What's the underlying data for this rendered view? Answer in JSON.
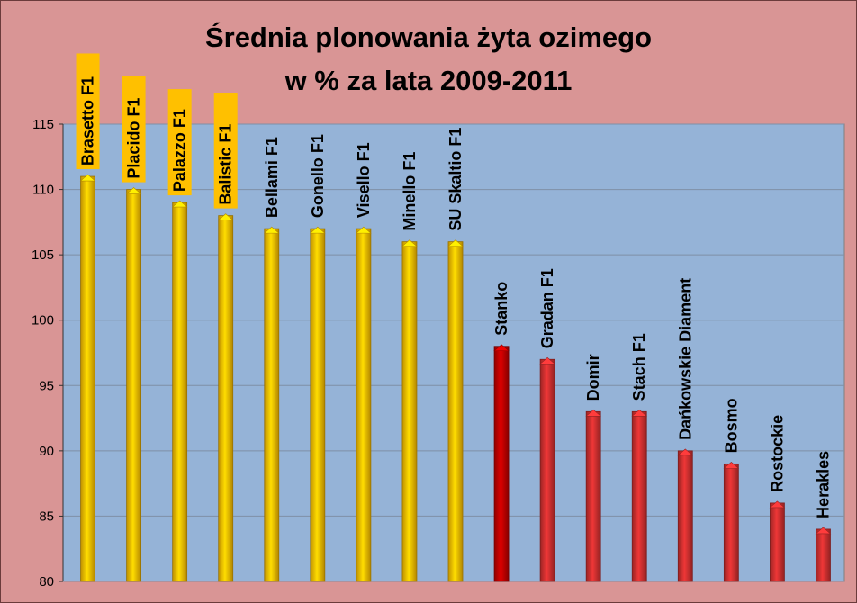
{
  "chart_data": {
    "type": "bar",
    "title": "Średnia plonowania żyta ozimego",
    "subtitle": "w % za lata 2009-2011",
    "xlabel": "",
    "ylabel": "",
    "ylim": [
      80,
      115
    ],
    "yticks": [
      "80",
      "85",
      "90",
      "95",
      "100",
      "105",
      "110",
      "115"
    ],
    "grid": true,
    "categories": [
      "Brasetto F1",
      "Placido F1",
      "Palazzo F1",
      "Balistic F1",
      "Bellami F1",
      "Gonello F1",
      "Visello F1",
      "Minello F1",
      "SU Skaltio F1",
      "Stanko",
      "Gradan F1",
      "Domir",
      "Stach F1",
      "Dańkowskie Diament",
      "Bosmo",
      "Rostockie",
      "Herakles"
    ],
    "values": [
      111,
      110,
      109,
      108,
      107,
      107,
      107,
      106,
      106,
      98,
      97,
      93,
      93,
      90,
      89,
      86,
      84
    ],
    "bar_colors": [
      "#ffc000",
      "#ffc000",
      "#ffc000",
      "#ffc000",
      "#ffc000",
      "#ffc000",
      "#ffc000",
      "#ffc000",
      "#ffc000",
      "#c00000",
      "#d03030",
      "#d03030",
      "#d03030",
      "#d03030",
      "#d03030",
      "#d03030",
      "#d03030"
    ],
    "highlighted_labels": [
      true,
      true,
      true,
      true,
      false,
      false,
      false,
      false,
      false,
      false,
      false,
      false,
      false,
      false,
      false,
      false,
      false
    ],
    "label_highlight_color": "#ffc000",
    "plot_background": "#95b3d7",
    "chart_background": "#d99595"
  }
}
